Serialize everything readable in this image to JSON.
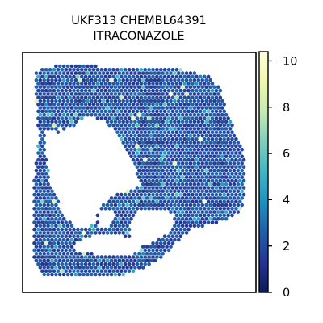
{
  "chart_data": {
    "type": "scatter",
    "subtype": "spatial-hexbin",
    "title_lines": [
      "UKF313 CHEMBL64391",
      "ITRACONAZOLE"
    ],
    "colorbar": {
      "colormap": "YlGnBu",
      "range": [
        0,
        10.4
      ],
      "ticks": [
        0,
        2,
        4,
        6,
        8,
        10
      ],
      "tick_labels": [
        "0",
        "2",
        "4",
        "6",
        "8",
        "10"
      ]
    },
    "axes": {
      "show_ticks": false,
      "grid": false
    },
    "value_summary": {
      "typical": [
        1,
        2.5
      ],
      "max_observed": 10.4
    }
  }
}
